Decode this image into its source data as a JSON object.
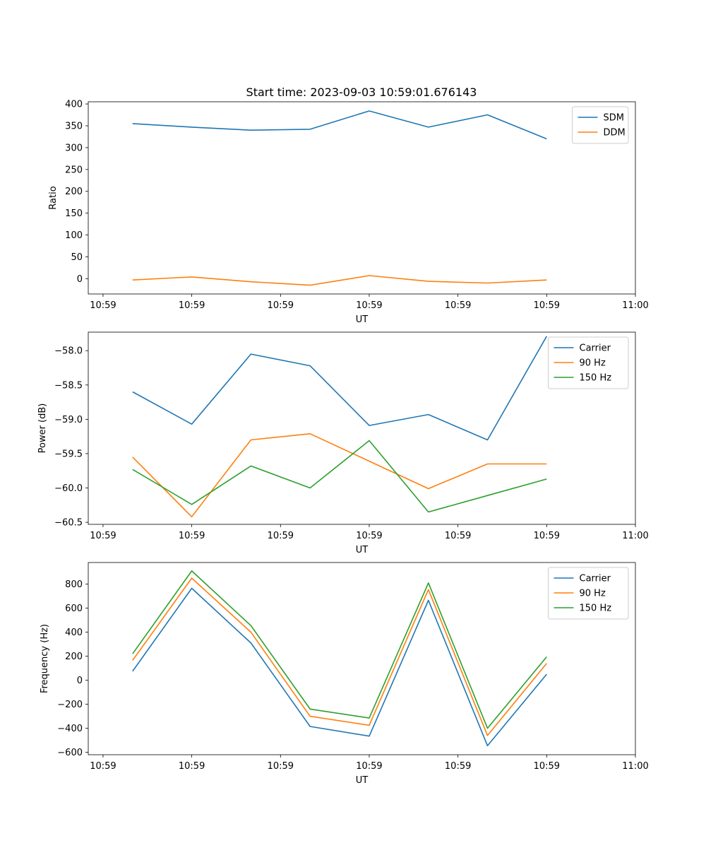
{
  "figure": {
    "title": "Start time: 2023-09-03 10:59:01.676143"
  },
  "chart_data": [
    {
      "type": "line",
      "title": "Start time: 2023-09-03 10:59:01.676143",
      "xlabel": "UT",
      "ylabel": "Ratio",
      "xlim": [
        -0.75,
        8.5
      ],
      "ylim": [
        -35,
        405
      ],
      "xticks": [
        {
          "value": -0.5,
          "label": "10:59"
        },
        {
          "value": 1,
          "label": "10:59"
        },
        {
          "value": 2.5,
          "label": "10:59"
        },
        {
          "value": 4,
          "label": "10:59"
        },
        {
          "value": 5.5,
          "label": "10:59"
        },
        {
          "value": 7,
          "label": "10:59"
        },
        {
          "value": 8.5,
          "label": "11:00"
        }
      ],
      "yticks": [
        0,
        50,
        100,
        150,
        200,
        250,
        300,
        350,
        400
      ],
      "legend": "top-right",
      "x": [
        0,
        1,
        2,
        3,
        4,
        5,
        6,
        7
      ],
      "series": [
        {
          "name": "SDM",
          "color": "#1f77b4",
          "values": [
            355,
            347,
            340,
            342,
            384,
            347,
            375,
            320
          ]
        },
        {
          "name": "DDM",
          "color": "#ff7f0e",
          "values": [
            -3,
            4,
            -7,
            -15,
            7,
            -6,
            -10,
            -3
          ]
        }
      ]
    },
    {
      "type": "line",
      "title": "",
      "xlabel": "UT",
      "ylabel": "Power (dB)",
      "xlim": [
        -0.75,
        8.5
      ],
      "ylim": [
        -60.53,
        -57.73
      ],
      "xticks": [
        {
          "value": -0.5,
          "label": "10:59"
        },
        {
          "value": 1,
          "label": "10:59"
        },
        {
          "value": 2.5,
          "label": "10:59"
        },
        {
          "value": 4,
          "label": "10:59"
        },
        {
          "value": 5.5,
          "label": "10:59"
        },
        {
          "value": 7,
          "label": "10:59"
        },
        {
          "value": 8.5,
          "label": "11:00"
        }
      ],
      "yticks": [
        -60.5,
        -60.0,
        -59.5,
        -59.0,
        -58.5,
        -58.0
      ],
      "ytick_labels": [
        "−60.5",
        "−60.0",
        "−59.5",
        "−59.0",
        "−58.5",
        "−58.0"
      ],
      "legend": "top-right",
      "x": [
        0,
        1,
        2,
        3,
        4,
        5,
        6,
        7
      ],
      "series": [
        {
          "name": "Carrier",
          "color": "#1f77b4",
          "values": [
            -58.6,
            -59.07,
            -58.05,
            -58.22,
            -59.09,
            -58.93,
            -59.3,
            -57.79
          ]
        },
        {
          "name": "90 Hz",
          "color": "#ff7f0e",
          "values": [
            -59.55,
            -60.42,
            -59.3,
            -59.21,
            -59.61,
            -60.01,
            -59.65,
            -59.65
          ]
        },
        {
          "name": "150 Hz",
          "color": "#2ca02c",
          "values": [
            -59.73,
            -60.24,
            -59.68,
            -60.0,
            -59.31,
            -60.35,
            -60.11,
            -59.87
          ]
        }
      ]
    },
    {
      "type": "line",
      "title": "",
      "xlabel": "UT",
      "ylabel": "Frequency (Hz)",
      "xlim": [
        -0.75,
        8.5
      ],
      "ylim": [
        -620,
        980
      ],
      "xticks": [
        {
          "value": -0.5,
          "label": "10:59"
        },
        {
          "value": 1,
          "label": "10:59"
        },
        {
          "value": 2.5,
          "label": "10:59"
        },
        {
          "value": 4,
          "label": "10:59"
        },
        {
          "value": 5.5,
          "label": "10:59"
        },
        {
          "value": 7,
          "label": "10:59"
        },
        {
          "value": 8.5,
          "label": "11:00"
        }
      ],
      "yticks": [
        -600,
        -400,
        -200,
        0,
        200,
        400,
        600,
        800
      ],
      "ytick_labels": [
        "−600",
        "−400",
        "−200",
        "0",
        "200",
        "400",
        "600",
        "800"
      ],
      "legend": "top-right",
      "x": [
        0,
        1,
        2,
        3,
        4,
        5,
        6,
        7
      ],
      "series": [
        {
          "name": "Carrier",
          "color": "#1f77b4",
          "values": [
            75,
            765,
            310,
            -385,
            -465,
            665,
            -545,
            50
          ]
        },
        {
          "name": "90 Hz",
          "color": "#ff7f0e",
          "values": [
            165,
            850,
            400,
            -300,
            -375,
            755,
            -460,
            140
          ]
        },
        {
          "name": "150 Hz",
          "color": "#2ca02c",
          "values": [
            220,
            910,
            455,
            -240,
            -315,
            810,
            -400,
            195
          ]
        }
      ]
    }
  ]
}
